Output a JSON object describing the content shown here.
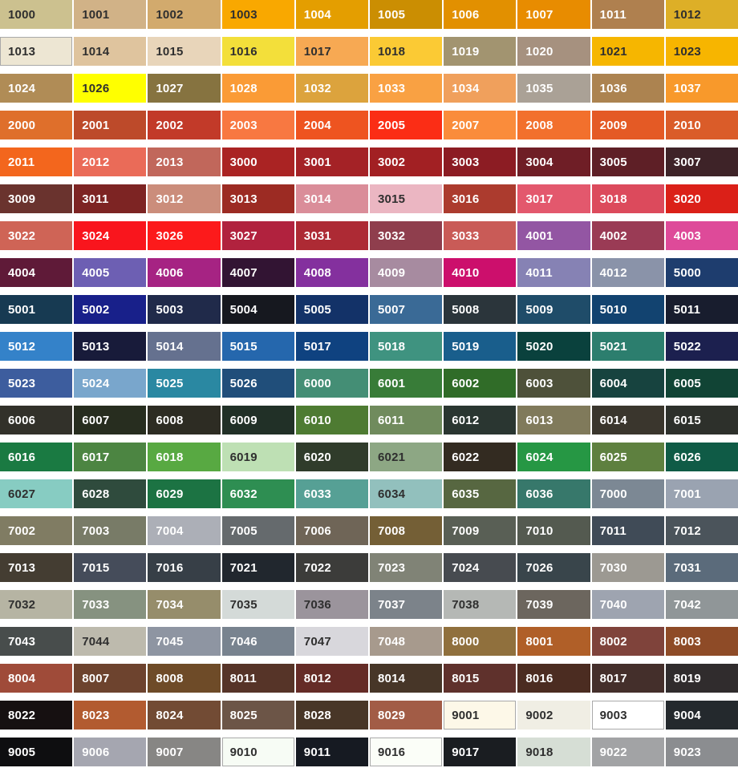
{
  "palette": {
    "format": [
      "code",
      "hex",
      "flags: d=dark text, l=light text, b=thin border"
    ],
    "text_dark": "#2F2F2F",
    "text_light": "#FFFFFF",
    "swatch_border": "#A9A9A9",
    "background": "#FFFFFF",
    "rows": [
      [
        [
          "1000",
          "#CCC18F",
          "d"
        ],
        [
          "1001",
          "#D1B287",
          "d"
        ],
        [
          "1002",
          "#D2AA6D",
          "d"
        ],
        [
          "1003",
          "#F9A800",
          "d"
        ],
        [
          "1004",
          "#E49E00",
          "l"
        ],
        [
          "1005",
          "#CB8E02",
          "l"
        ],
        [
          "1006",
          "#E29000",
          "l"
        ],
        [
          "1007",
          "#E88C00",
          "l"
        ],
        [
          "1011",
          "#AF804F",
          "l"
        ],
        [
          "1012",
          "#DDAF27",
          "d"
        ]
      ],
      [
        [
          "1013",
          "#EDE6D3",
          "db"
        ],
        [
          "1014",
          "#DFC49E",
          "d"
        ],
        [
          "1015",
          "#E8D5BA",
          "d"
        ],
        [
          "1016",
          "#F3DF3A",
          "d"
        ],
        [
          "1017",
          "#F7A953",
          "d"
        ],
        [
          "1018",
          "#FBCA34",
          "d"
        ],
        [
          "1019",
          "#A29470",
          "l"
        ],
        [
          "1020",
          "#A6917F",
          "l"
        ],
        [
          "1021",
          "#F6B600",
          "d"
        ],
        [
          "1023",
          "#F7B500",
          "d"
        ]
      ],
      [
        [
          "1024",
          "#B08C56",
          "l"
        ],
        [
          "1026",
          "#FFFF00",
          "d"
        ],
        [
          "1027",
          "#867340",
          "l"
        ],
        [
          "1028",
          "#FA9B36",
          "l"
        ],
        [
          "1032",
          "#DCA33D",
          "l"
        ],
        [
          "1033",
          "#F9A143",
          "l"
        ],
        [
          "1034",
          "#F0A05C",
          "l"
        ],
        [
          "1035",
          "#AAA196",
          "l"
        ],
        [
          "1036",
          "#AC8350",
          "l"
        ],
        [
          "1037",
          "#F8992B",
          "l"
        ]
      ],
      [
        [
          "2000",
          "#DF6F2B",
          "l"
        ],
        [
          "2001",
          "#BD4A2A",
          "l"
        ],
        [
          "2002",
          "#C23A29",
          "l"
        ],
        [
          "2003",
          "#F87841",
          "l"
        ],
        [
          "2004",
          "#EE5420",
          "l"
        ],
        [
          "2005",
          "#FB2D15",
          "l"
        ],
        [
          "2007",
          "#FA8C3B",
          "l"
        ],
        [
          "2008",
          "#F2702D",
          "l"
        ],
        [
          "2009",
          "#E45A25",
          "l"
        ],
        [
          "2010",
          "#DA5C29",
          "l"
        ]
      ],
      [
        [
          "2011",
          "#F3661D",
          "l"
        ],
        [
          "2012",
          "#EA6B58",
          "l"
        ],
        [
          "2013",
          "#C1675B",
          "l"
        ],
        [
          "3000",
          "#AA2323",
          "l"
        ],
        [
          "3001",
          "#A42226",
          "l"
        ],
        [
          "3002",
          "#A22023",
          "l"
        ],
        [
          "3003",
          "#8C1C23",
          "l"
        ],
        [
          "3004",
          "#6F1E26",
          "l"
        ],
        [
          "3005",
          "#5E1F26",
          "l"
        ],
        [
          "3007",
          "#3E2328",
          "l"
        ]
      ],
      [
        [
          "3009",
          "#6A332E",
          "l"
        ],
        [
          "3011",
          "#7D2423",
          "l"
        ],
        [
          "3012",
          "#CB8D7B",
          "l"
        ],
        [
          "3013",
          "#9C2B23",
          "l"
        ],
        [
          "3014",
          "#DA8D99",
          "l"
        ],
        [
          "3015",
          "#EBB6C2",
          "d"
        ],
        [
          "3016",
          "#AC3B2E",
          "l"
        ],
        [
          "3017",
          "#E3586D",
          "l"
        ],
        [
          "3018",
          "#DC4A5C",
          "l"
        ],
        [
          "3020",
          "#DB2018",
          "l"
        ]
      ],
      [
        [
          "3022",
          "#CF6456",
          "l"
        ],
        [
          "3024",
          "#F9151D",
          "l"
        ],
        [
          "3026",
          "#FC1A1B",
          "l"
        ],
        [
          "3027",
          "#B1223E",
          "l"
        ],
        [
          "3031",
          "#AD2A34",
          "l"
        ],
        [
          "3032",
          "#8F3E4D",
          "l"
        ],
        [
          "3033",
          "#C95B57",
          "l"
        ],
        [
          "4001",
          "#9356A3",
          "l"
        ],
        [
          "4002",
          "#9A3B55",
          "l"
        ],
        [
          "4003",
          "#DE4A99",
          "l"
        ]
      ],
      [
        [
          "4004",
          "#5F1A38",
          "l"
        ],
        [
          "4005",
          "#6D5FB3",
          "l"
        ],
        [
          "4006",
          "#A62383",
          "l"
        ],
        [
          "4007",
          "#321433",
          "l"
        ],
        [
          "4008",
          "#84309E",
          "l"
        ],
        [
          "4009",
          "#A78BA0",
          "l"
        ],
        [
          "4010",
          "#CC0F6C",
          "l"
        ],
        [
          "4011",
          "#8682B4",
          "l"
        ],
        [
          "4012",
          "#8A93A9",
          "l"
        ],
        [
          "5000",
          "#1E3D6E",
          "l"
        ]
      ],
      [
        [
          "5001",
          "#173A52",
          "l"
        ],
        [
          "5002",
          "#18208A",
          "l"
        ],
        [
          "5003",
          "#202A4A",
          "l"
        ],
        [
          "5004",
          "#16181F",
          "l"
        ],
        [
          "5005",
          "#133268",
          "l"
        ],
        [
          "5007",
          "#3A6A96",
          "l"
        ],
        [
          "5008",
          "#2B353B",
          "l"
        ],
        [
          "5009",
          "#1F4C69",
          "l"
        ],
        [
          "5010",
          "#124370",
          "l"
        ],
        [
          "5011",
          "#181D2E",
          "l"
        ]
      ],
      [
        [
          "5012",
          "#3482C9",
          "l"
        ],
        [
          "5013",
          "#181B3A",
          "l"
        ],
        [
          "5014",
          "#65718F",
          "l"
        ],
        [
          "5015",
          "#2567AD",
          "l"
        ],
        [
          "5017",
          "#0F4280",
          "l"
        ],
        [
          "5018",
          "#3F9380",
          "l"
        ],
        [
          "5019",
          "#195E8C",
          "l"
        ],
        [
          "5020",
          "#0A413D",
          "l"
        ],
        [
          "5021",
          "#2C7E6E",
          "l"
        ],
        [
          "5022",
          "#1C204F",
          "l"
        ]
      ],
      [
        [
          "5023",
          "#3D5D9E",
          "l"
        ],
        [
          "5024",
          "#79A6CC",
          "l"
        ],
        [
          "5025",
          "#2A88A2",
          "l"
        ],
        [
          "5026",
          "#204E7A",
          "l"
        ],
        [
          "6000",
          "#448E75",
          "l"
        ],
        [
          "6001",
          "#387C38",
          "l"
        ],
        [
          "6002",
          "#306C28",
          "l"
        ],
        [
          "6003",
          "#4E513A",
          "l"
        ],
        [
          "6004",
          "#17433F",
          "l"
        ],
        [
          "6005",
          "#114435",
          "l"
        ]
      ],
      [
        [
          "6006",
          "#32312A",
          "l"
        ],
        [
          "6007",
          "#272D1F",
          "l"
        ],
        [
          "6008",
          "#2D2C23",
          "l"
        ],
        [
          "6009",
          "#213027",
          "l"
        ],
        [
          "6010",
          "#4E7B32",
          "l"
        ],
        [
          "6011",
          "#708B5D",
          "l"
        ],
        [
          "6012",
          "#2A3631",
          "l"
        ],
        [
          "6013",
          "#807A5B",
          "l"
        ],
        [
          "6014",
          "#3A362D",
          "l"
        ],
        [
          "6015",
          "#2D302B",
          "l"
        ]
      ],
      [
        [
          "6016",
          "#1A7A42",
          "l"
        ],
        [
          "6017",
          "#4C8542",
          "l"
        ],
        [
          "6018",
          "#58A942",
          "l"
        ],
        [
          "6019",
          "#BEE0B4",
          "d"
        ],
        [
          "6020",
          "#303C2B",
          "l"
        ],
        [
          "6021",
          "#8DA784",
          "d"
        ],
        [
          "6022",
          "#332B21",
          "l"
        ],
        [
          "6024",
          "#269744",
          "l"
        ],
        [
          "6025",
          "#5E803F",
          "l"
        ],
        [
          "6026",
          "#0F5B46",
          "l"
        ]
      ],
      [
        [
          "6027",
          "#87CCC2",
          "d"
        ],
        [
          "6028",
          "#2F4B3D",
          "l"
        ],
        [
          "6029",
          "#1C7343",
          "l"
        ],
        [
          "6032",
          "#2E8E52",
          "l"
        ],
        [
          "6033",
          "#56A095",
          "l"
        ],
        [
          "6034",
          "#92C0BD",
          "d"
        ],
        [
          "6035",
          "#576741",
          "l"
        ],
        [
          "6036",
          "#37786B",
          "l"
        ],
        [
          "7000",
          "#7C8894",
          "l"
        ],
        [
          "7001",
          "#9AA3B1",
          "l"
        ]
      ],
      [
        [
          "7002",
          "#807C63",
          "l"
        ],
        [
          "7003",
          "#787B67",
          "l"
        ],
        [
          "7004",
          "#ACAFB7",
          "l"
        ],
        [
          "7005",
          "#656A6D",
          "l"
        ],
        [
          "7006",
          "#6F6557",
          "l"
        ],
        [
          "7008",
          "#745F36",
          "l"
        ],
        [
          "7009",
          "#595F55",
          "l"
        ],
        [
          "7010",
          "#545A50",
          "l"
        ],
        [
          "7011",
          "#404B57",
          "l"
        ],
        [
          "7012",
          "#4B545B",
          "l"
        ]
      ],
      [
        [
          "7013",
          "#443D32",
          "l"
        ],
        [
          "7015",
          "#454C5A",
          "l"
        ],
        [
          "7016",
          "#373F47",
          "l"
        ],
        [
          "7021",
          "#21272E",
          "l"
        ],
        [
          "7022",
          "#3C3C3A",
          "l"
        ],
        [
          "7023",
          "#808376",
          "l"
        ],
        [
          "7024",
          "#474B50",
          "l"
        ],
        [
          "7026",
          "#39454B",
          "l"
        ],
        [
          "7030",
          "#9C9992",
          "l"
        ],
        [
          "7031",
          "#5B6B7B",
          "l"
        ]
      ],
      [
        [
          "7032",
          "#B6B4A3",
          "d"
        ],
        [
          "7033",
          "#869280",
          "l"
        ],
        [
          "7034",
          "#968D6B",
          "l"
        ],
        [
          "7035",
          "#D4DAD8",
          "d"
        ],
        [
          "7036",
          "#9B949C",
          "d"
        ],
        [
          "7037",
          "#7C838A",
          "l"
        ],
        [
          "7038",
          "#B5B8B5",
          "d"
        ],
        [
          "7039",
          "#6C665E",
          "l"
        ],
        [
          "7040",
          "#9EA4B0",
          "l"
        ],
        [
          "7042",
          "#909698",
          "l"
        ]
      ],
      [
        [
          "7043",
          "#484D4C",
          "l"
        ],
        [
          "7044",
          "#BDBAAD",
          "d"
        ],
        [
          "7045",
          "#8E95A2",
          "l"
        ],
        [
          "7046",
          "#78838F",
          "l"
        ],
        [
          "7047",
          "#D8D7DC",
          "d"
        ],
        [
          "7048",
          "#A79A8D",
          "l"
        ],
        [
          "8000",
          "#90703D",
          "l"
        ],
        [
          "8001",
          "#B05F28",
          "l"
        ],
        [
          "8002",
          "#7F433B",
          "l"
        ],
        [
          "8003",
          "#8E4B27",
          "l"
        ]
      ],
      [
        [
          "8004",
          "#9F4B39",
          "l"
        ],
        [
          "8007",
          "#6D432E",
          "l"
        ],
        [
          "8008",
          "#6E4B28",
          "l"
        ],
        [
          "8011",
          "#563428",
          "l"
        ],
        [
          "8012",
          "#652C27",
          "l"
        ],
        [
          "8014",
          "#473628",
          "l"
        ],
        [
          "8015",
          "#5F312C",
          "l"
        ],
        [
          "8016",
          "#4B2C21",
          "l"
        ],
        [
          "8017",
          "#442F2B",
          "l"
        ],
        [
          "8019",
          "#302C2D",
          "l"
        ]
      ],
      [
        [
          "8022",
          "#161011",
          "l"
        ],
        [
          "8023",
          "#B25B30",
          "l"
        ],
        [
          "8024",
          "#724B34",
          "l"
        ],
        [
          "8025",
          "#6C5547",
          "l"
        ],
        [
          "8028",
          "#483627",
          "l"
        ],
        [
          "8029",
          "#A25C46",
          "l"
        ],
        [
          "9001",
          "#FDF8E8",
          "db"
        ],
        [
          "9002",
          "#F0EEE4",
          "d"
        ],
        [
          "9003",
          "#FFFFFF",
          "db"
        ],
        [
          "9004",
          "#24292D",
          "l"
        ]
      ],
      [
        [
          "9005",
          "#0E0E10",
          "l"
        ],
        [
          "9006",
          "#A5A6B0",
          "l"
        ],
        [
          "9007",
          "#878684",
          "l"
        ],
        [
          "9010",
          "#F7FCF5",
          "db"
        ],
        [
          "9011",
          "#161A22",
          "l"
        ],
        [
          "9016",
          "#FBFEF8",
          "db"
        ],
        [
          "9017",
          "#1A1D21",
          "l"
        ],
        [
          "9018",
          "#D6DED5",
          "d"
        ],
        [
          "9022",
          "#A2A3A5",
          "l"
        ],
        [
          "9023",
          "#8B8D90",
          "l"
        ]
      ]
    ]
  }
}
